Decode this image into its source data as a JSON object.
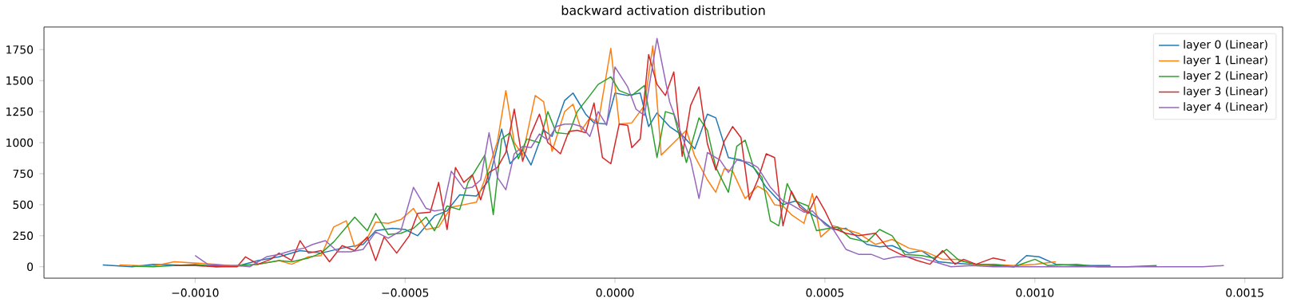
{
  "chart_data": {
    "type": "line",
    "title": "backward activation distribution",
    "legend": "top right",
    "marker": "none",
    "line_style": "solid",
    "xlim": [
      -0.00136,
      0.00159
    ],
    "ylim": [
      -92,
      1932
    ],
    "xticks": [
      {
        "value": -0.001,
        "label": "−0.0010"
      },
      {
        "value": -0.0005,
        "label": "−0.0005"
      },
      {
        "value": 0,
        "label": "0.0000"
      },
      {
        "value": 0.0005,
        "label": "0.0005"
      },
      {
        "value": 0.001,
        "label": "0.0010"
      },
      {
        "value": 0.0015,
        "label": "0.0015"
      }
    ],
    "yticks": [
      0,
      250,
      500,
      750,
      1000,
      1250,
      1500,
      1750
    ],
    "series": [
      {
        "name": "layer 0 (Linear)",
        "color": "#1f77b4",
        "x": [
          -0.00122,
          -0.00115,
          -0.0011,
          -0.001,
          -0.0009,
          -0.00085,
          -0.0008,
          -0.00075,
          -0.0007,
          -0.00065,
          -0.0006,
          -0.00057,
          -0.00053,
          -0.0005,
          -0.00047,
          -0.00043,
          -0.0004,
          -0.00037,
          -0.00033,
          -0.0003,
          -0.00027,
          -0.00025,
          -0.00022,
          -0.0002,
          -0.00017,
          -0.00015,
          -0.00012,
          -0.0001,
          -7e-05,
          -5e-05,
          -2e-05,
          0,
          3e-05,
          6e-05,
          8e-05,
          0.0001,
          0.00013,
          0.00016,
          0.00019,
          0.00022,
          0.00024,
          0.00027,
          0.0003,
          0.00033,
          0.00036,
          0.0004,
          0.00043,
          0.00046,
          0.00049,
          0.00052,
          0.00055,
          0.0006,
          0.00063,
          0.00066,
          0.0007,
          0.00073,
          0.00077,
          0.0008,
          0.00085,
          0.0009,
          0.00095,
          0.00098,
          0.00101,
          0.00105,
          0.0011,
          0.00118
        ],
        "values": [
          15,
          0,
          20,
          10,
          5,
          50,
          80,
          130,
          110,
          150,
          180,
          290,
          310,
          300,
          250,
          410,
          450,
          580,
          570,
          700,
          1110,
          830,
          940,
          820,
          1100,
          1050,
          1340,
          1400,
          1230,
          1160,
          1150,
          1400,
          1380,
          1400,
          1130,
          1240,
          1130,
          1060,
          950,
          1230,
          1200,
          880,
          860,
          800,
          640,
          500,
          530,
          440,
          380,
          300,
          310,
          180,
          160,
          170,
          110,
          130,
          40,
          30,
          20,
          10,
          0,
          90,
          80,
          20,
          10,
          10
        ]
      },
      {
        "name": "layer 1 (Linear)",
        "color": "#ff7f0e",
        "x": [
          -0.00118,
          -0.0011,
          -0.00105,
          -0.001,
          -0.00095,
          -0.0009,
          -0.00085,
          -0.0008,
          -0.00077,
          -0.00073,
          -0.0007,
          -0.00067,
          -0.00064,
          -0.00062,
          -0.00059,
          -0.00057,
          -0.00054,
          -0.00051,
          -0.00048,
          -0.00045,
          -0.00042,
          -0.00039,
          -0.00036,
          -0.00033,
          -0.0003,
          -0.00028,
          -0.00026,
          -0.00024,
          -0.00022,
          -0.00019,
          -0.00017,
          -0.00015,
          -0.00012,
          -0.0001,
          -8e-05,
          -6e-05,
          -4e-05,
          -1e-05,
          1e-05,
          4e-05,
          7e-05,
          9e-05,
          0.00011,
          0.00014,
          0.00017,
          0.00019,
          0.00022,
          0.00024,
          0.00026,
          0.00028,
          0.00031,
          0.00034,
          0.00036,
          0.00038,
          0.0004,
          0.00042,
          0.00045,
          0.00047,
          0.00049,
          0.00052,
          0.00055,
          0.00058,
          0.00062,
          0.00066,
          0.0007,
          0.00074,
          0.00078,
          0.00082,
          0.00086,
          0.0009,
          0.00095,
          0.001,
          0.00105
        ],
        "values": [
          15,
          5,
          40,
          30,
          20,
          5,
          20,
          50,
          20,
          80,
          90,
          320,
          370,
          160,
          230,
          360,
          350,
          380,
          470,
          300,
          320,
          480,
          500,
          520,
          800,
          1010,
          1420,
          1000,
          900,
          1380,
          1330,
          930,
          1250,
          1310,
          1100,
          1200,
          1160,
          1760,
          1150,
          1160,
          1300,
          1780,
          900,
          1000,
          1100,
          890,
          700,
          600,
          790,
          770,
          550,
          650,
          610,
          500,
          490,
          420,
          350,
          590,
          240,
          330,
          300,
          270,
          180,
          220,
          150,
          120,
          60,
          60,
          10,
          20,
          10,
          20,
          40
        ]
      },
      {
        "name": "layer 2 (Linear)",
        "color": "#2ca02c",
        "x": [
          -0.00115,
          -0.0011,
          -0.00105,
          -0.001,
          -0.00095,
          -0.0009,
          -0.00085,
          -0.0008,
          -0.00077,
          -0.00073,
          -0.0007,
          -0.00067,
          -0.00064,
          -0.00062,
          -0.00059,
          -0.00057,
          -0.00054,
          -0.00051,
          -0.00048,
          -0.00045,
          -0.00043,
          -0.0004,
          -0.00037,
          -0.00035,
          -0.00033,
          -0.00031,
          -0.00029,
          -0.00027,
          -0.00025,
          -0.00023,
          -0.00021,
          -0.00018,
          -0.00016,
          -0.00014,
          -0.00011,
          -9e-05,
          -6e-05,
          -4e-05,
          -1e-05,
          1e-05,
          4e-05,
          7e-05,
          0.0001,
          0.00012,
          0.00014,
          0.00017,
          0.0002,
          0.00022,
          0.00024,
          0.00027,
          0.00029,
          0.00031,
          0.00033,
          0.00035,
          0.00037,
          0.00039,
          0.00041,
          0.00043,
          0.00046,
          0.00048,
          0.00051,
          0.00053,
          0.00056,
          0.0006,
          0.00063,
          0.00066,
          0.00069,
          0.00073,
          0.00076,
          0.00079,
          0.00082,
          0.00086,
          0.0009,
          0.00095,
          0.001,
          0.00103,
          0.0011,
          0.00115,
          0.00122,
          0.00129
        ],
        "values": [
          5,
          0,
          10,
          20,
          0,
          10,
          20,
          50,
          40,
          70,
          110,
          200,
          320,
          400,
          290,
          430,
          260,
          270,
          310,
          400,
          290,
          490,
          460,
          680,
          790,
          900,
          420,
          1030,
          1080,
          870,
          1030,
          1000,
          1250,
          1080,
          1070,
          1250,
          1380,
          1470,
          1530,
          1420,
          1380,
          1460,
          880,
          1250,
          1230,
          840,
          1200,
          1100,
          800,
          600,
          970,
          1020,
          800,
          720,
          370,
          330,
          670,
          530,
          490,
          290,
          310,
          320,
          230,
          200,
          300,
          250,
          100,
          90,
          70,
          140,
          50,
          20,
          20,
          0,
          60,
          10,
          20,
          0,
          0,
          10
        ]
      },
      {
        "name": "layer 3 (Linear)",
        "color": "#d62728",
        "x": [
          -0.00105,
          -0.001,
          -0.00095,
          -0.0009,
          -0.00088,
          -0.00085,
          -0.00082,
          -0.0008,
          -0.00077,
          -0.00075,
          -0.00073,
          -0.0007,
          -0.00068,
          -0.00065,
          -0.00062,
          -0.00059,
          -0.00057,
          -0.00055,
          -0.00052,
          -0.00049,
          -0.00047,
          -0.00044,
          -0.00042,
          -0.0004,
          -0.00038,
          -0.00036,
          -0.00034,
          -0.00032,
          -0.0003,
          -0.00028,
          -0.00026,
          -0.00024,
          -0.00022,
          -0.0002,
          -0.00018,
          -0.00016,
          -0.00013,
          -0.00011,
          -9e-05,
          -7e-05,
          -5e-05,
          -3e-05,
          -1e-05,
          1e-05,
          3e-05,
          4e-05,
          6e-05,
          8e-05,
          0.0001,
          0.00012,
          0.00014,
          0.00016,
          0.00018,
          0.0002,
          0.00022,
          0.00024,
          0.00026,
          0.00028,
          0.0003,
          0.00032,
          0.00034,
          0.00036,
          0.00038,
          0.0004,
          0.00042,
          0.00044,
          0.00046,
          0.00048,
          0.0005,
          0.00052,
          0.00055,
          0.00058,
          0.00062,
          0.00065,
          0.00068,
          0.00072,
          0.00075,
          0.00078,
          0.00081,
          0.00083,
          0.00086,
          0.0009,
          0.00093
        ],
        "values": [
          10,
          10,
          0,
          0,
          80,
          20,
          60,
          110,
          50,
          210,
          110,
          130,
          40,
          170,
          130,
          240,
          50,
          240,
          110,
          250,
          430,
          440,
          680,
          300,
          800,
          680,
          740,
          540,
          760,
          800,
          920,
          1270,
          850,
          1070,
          1230,
          1000,
          910,
          1090,
          1100,
          1080,
          1320,
          880,
          830,
          1150,
          1140,
          960,
          1030,
          1710,
          1470,
          1380,
          1570,
          890,
          1300,
          1450,
          990,
          780,
          1010,
          1130,
          1040,
          540,
          700,
          910,
          880,
          330,
          610,
          480,
          430,
          570,
          450,
          310,
          270,
          250,
          270,
          150,
          100,
          50,
          20,
          130,
          20,
          60,
          20,
          70,
          50
        ]
      },
      {
        "name": "layer 4 (Linear)",
        "color": "#9467bd",
        "x": [
          -0.001,
          -0.00097,
          -0.00093,
          -0.0009,
          -0.00087,
          -0.00083,
          -0.0008,
          -0.00077,
          -0.00074,
          -0.00072,
          -0.00069,
          -0.00066,
          -0.00063,
          -0.0006,
          -0.00057,
          -0.00054,
          -0.00051,
          -0.00048,
          -0.00045,
          -0.00043,
          -0.00041,
          -0.00039,
          -0.00036,
          -0.00034,
          -0.00032,
          -0.0003,
          -0.00028,
          -0.00026,
          -0.00024,
          -0.00022,
          -0.0002,
          -0.00018,
          -0.00016,
          -0.00014,
          -0.00012,
          -0.0001,
          -8e-05,
          -6e-05,
          -4e-05,
          -2e-05,
          0,
          3e-05,
          5e-05,
          7e-05,
          0.0001,
          0.00013,
          0.00016,
          0.00018,
          0.0002,
          0.00022,
          0.00025,
          0.00027,
          0.00029,
          0.00032,
          0.00034,
          0.00037,
          0.0004,
          0.00042,
          0.00045,
          0.00047,
          0.0005,
          0.00052,
          0.00055,
          0.00058,
          0.00061,
          0.00064,
          0.00067,
          0.0007,
          0.00073,
          0.00077,
          0.0008,
          0.00085,
          0.0009,
          0.001,
          0.0011,
          0.0012,
          0.0013,
          0.0014,
          0.00145
        ],
        "values": [
          90,
          20,
          10,
          10,
          0,
          80,
          100,
          130,
          150,
          180,
          210,
          120,
          120,
          140,
          280,
          230,
          290,
          640,
          470,
          450,
          460,
          770,
          630,
          640,
          700,
          1080,
          720,
          620,
          910,
          970,
          960,
          1070,
          1020,
          1130,
          1150,
          1150,
          1130,
          1050,
          1250,
          1140,
          1610,
          1450,
          1270,
          1220,
          1840,
          1330,
          1050,
          860,
          550,
          920,
          860,
          760,
          860,
          840,
          800,
          640,
          530,
          500,
          440,
          450,
          340,
          300,
          140,
          100,
          100,
          60,
          80,
          80,
          70,
          30,
          0,
          10,
          0,
          0,
          0,
          0,
          0,
          0,
          10
        ]
      }
    ]
  }
}
